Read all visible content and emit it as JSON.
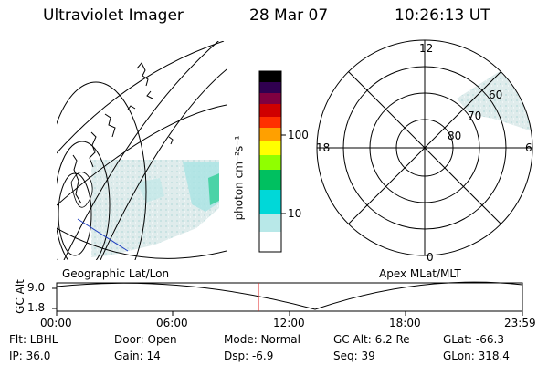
{
  "header": {
    "instrument": "Ultraviolet Imager",
    "date": "28 Mar 07",
    "time": "10:26:13 UT"
  },
  "left_panel": {
    "label": "Geographic Lat/Lon"
  },
  "right_panel": {
    "label": "Apex MLat/MLT",
    "mlt_labels": {
      "top": "12",
      "left": "18",
      "right": "6",
      "bottom": "0"
    },
    "lat_labels": [
      "60",
      "70",
      "80"
    ]
  },
  "colorbar": {
    "unit_label": "photon cm⁻²s⁻¹",
    "tick_labels": [
      "100",
      "10"
    ],
    "colors": [
      "#ffffff",
      "#b8e8e8",
      "#00d8d8",
      "#00c060",
      "#90ff00",
      "#ffff00",
      "#ffa000",
      "#ff3000",
      "#d00000",
      "#800040",
      "#300050",
      "#000000"
    ]
  },
  "timeline": {
    "ylabel": "GC Alt",
    "y_ticks": [
      "9.0",
      "1.8"
    ],
    "x_ticks": [
      "00:00",
      "06:00",
      "12:00",
      "18:00",
      "23:59"
    ],
    "marker_time": "10:26:13"
  },
  "info": {
    "flt": "Flt: LBHL",
    "ip": "IP: 36.0",
    "door": "Door: Open",
    "gain": "Gain: 14",
    "mode": "Mode: Normal",
    "dsp": "Dsp:     -6.9",
    "gc_alt": "GC Alt: 6.2 Re",
    "seq": "Seq: 39",
    "glat": "GLat: -66.3",
    "glon": "GLon: 318.4"
  }
}
